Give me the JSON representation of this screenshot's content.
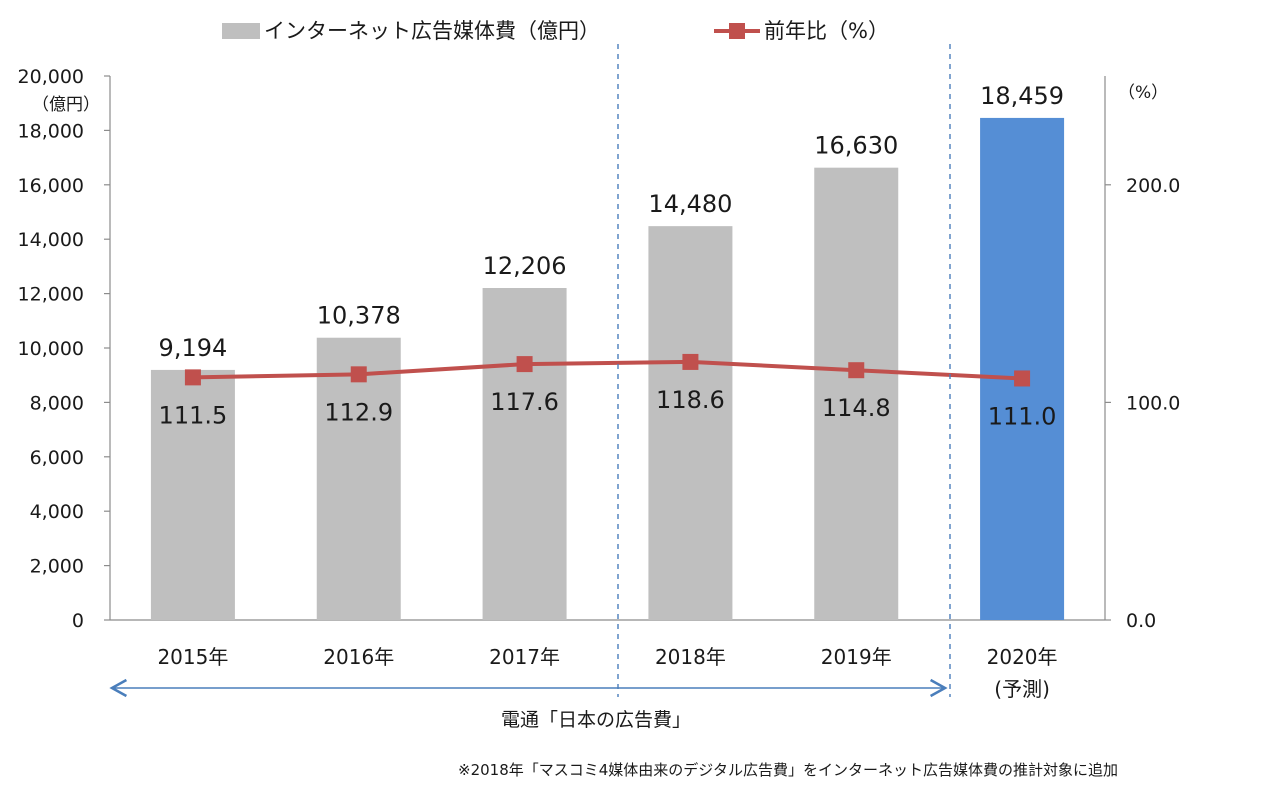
{
  "chart_data": {
    "type": "bar",
    "categories": [
      "2015年",
      "2016年",
      "2017年",
      "2018年",
      "2019年",
      "2020年"
    ],
    "category_sublabels": [
      "",
      "",
      "",
      "",
      "",
      "(予測)"
    ],
    "series": [
      {
        "name": "インターネット広告媒体費（億円）",
        "kind": "bar",
        "axis": "left",
        "values": [
          9194,
          10378,
          12206,
          14480,
          16630,
          18459
        ],
        "labels": [
          "9,194",
          "10,378",
          "12,206",
          "14,480",
          "16,630",
          "18,459"
        ],
        "color": "#bfbfbf",
        "highlight_color": "#558ed5",
        "highlight_index": 5
      },
      {
        "name": "前年比（%）",
        "kind": "line",
        "axis": "right",
        "values": [
          111.5,
          112.9,
          117.6,
          118.6,
          114.8,
          111.0
        ],
        "labels": [
          "111.5",
          "112.9",
          "117.6",
          "118.6",
          "114.8",
          "111.0"
        ],
        "color": "#c0504d"
      }
    ],
    "y_left": {
      "ylim": [
        0,
        20000
      ],
      "ticks": [
        0,
        2000,
        4000,
        6000,
        8000,
        10000,
        12000,
        14000,
        16000,
        18000,
        20000
      ],
      "tick_labels": [
        "0",
        "2,000",
        "4,000",
        "6,000",
        "8,000",
        "10,000",
        "12,000",
        "14,000",
        "16,000",
        "18,000",
        "20,000"
      ],
      "unit": "（億円）"
    },
    "y_right": {
      "ylim": [
        0,
        250
      ],
      "ticks": [
        0,
        100,
        200
      ],
      "tick_labels": [
        "0.0",
        "100.0",
        "200.0"
      ],
      "unit": "（%）"
    },
    "legend_position": "top",
    "annotations": {
      "dentsu_range_label": "電通「日本の広告費」",
      "footnote": "※2018年「マスコミ4媒体由来のデジタル広告費」をインターネット広告媒体費の推計対象に追加"
    },
    "grid": false
  }
}
